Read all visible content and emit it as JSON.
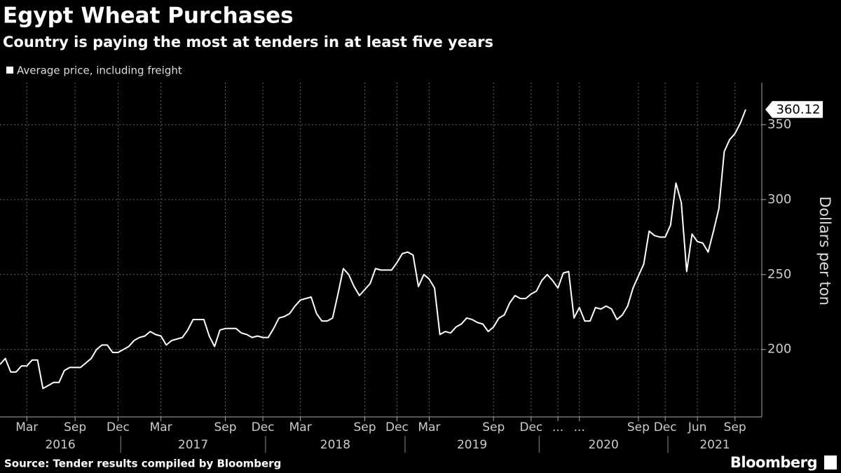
{
  "chart_data": {
    "type": "line",
    "title": "Egypt Wheat Purchases",
    "subtitle": "Country is paying the most at tenders in at least five years",
    "y_axis_label": "Dollars per ton",
    "source": "Source: Tender results compiled by Bloomberg",
    "brand": "Bloomberg",
    "categories": [
      null,
      null,
      null,
      null,
      null,
      "Mar",
      null,
      null,
      null,
      null,
      null,
      null,
      null,
      null,
      "Sep",
      null,
      null,
      null,
      null,
      null,
      null,
      null,
      "Dec",
      null,
      null,
      null,
      null,
      null,
      null,
      null,
      "Mar",
      null,
      null,
      null,
      null,
      null,
      null,
      null,
      null,
      null,
      null,
      null,
      "Sep",
      null,
      null,
      null,
      null,
      null,
      null,
      "Dec",
      null,
      null,
      null,
      null,
      null,
      null,
      "Mar",
      null,
      null,
      null,
      null,
      null,
      null,
      null,
      null,
      null,
      null,
      null,
      "Sep",
      null,
      null,
      null,
      null,
      null,
      "Dec",
      null,
      null,
      null,
      null,
      null,
      "Mar",
      null,
      null,
      null,
      null,
      null,
      null,
      null,
      null,
      null,
      null,
      null,
      "Sep",
      null,
      null,
      null,
      null,
      null,
      null,
      "Dec",
      null,
      null,
      null,
      null,
      "...",
      null,
      null,
      null,
      "...",
      null,
      null,
      null,
      null,
      null,
      null,
      null,
      null,
      null,
      null,
      "Sep",
      null,
      null,
      null,
      null,
      "Dec",
      null,
      null,
      null,
      null,
      null,
      "Jun",
      null,
      null,
      null,
      null,
      null,
      null,
      "Sep",
      null,
      null
    ],
    "year_groups": [
      {
        "label": "2016",
        "count": 23
      },
      {
        "label": "2017",
        "count": 27
      },
      {
        "label": "2018",
        "count": 26
      },
      {
        "label": "2019",
        "count": 25
      },
      {
        "label": "2020",
        "count": 24
      },
      {
        "label": "2021",
        "count": 15
      }
    ],
    "series": [
      {
        "name": "Average price, including freight",
        "color": "#ffffff",
        "values": [
          190,
          194,
          185,
          185,
          189,
          189,
          193,
          193,
          174,
          176,
          178,
          178,
          186,
          188,
          188,
          188,
          191,
          194,
          200,
          203,
          203,
          198,
          198,
          200,
          202,
          206,
          208,
          209,
          212,
          210,
          209,
          203,
          206,
          207,
          208,
          213,
          220,
          220,
          220,
          209,
          202,
          213,
          214,
          214,
          214,
          211,
          210,
          208,
          209,
          208,
          208,
          214,
          221,
          222,
          224,
          229,
          233,
          234,
          235,
          224,
          219,
          219,
          221,
          237,
          254,
          250,
          242,
          236,
          240,
          244,
          254,
          253,
          253,
          253,
          258,
          264,
          265,
          263,
          242,
          250,
          247,
          241,
          210,
          212,
          211,
          215,
          217,
          221,
          220,
          218,
          217,
          212,
          215,
          221,
          223,
          231,
          236,
          234,
          234,
          237,
          239,
          246,
          250,
          246,
          241,
          251,
          252,
          221,
          228,
          219,
          219,
          228,
          227,
          229,
          227,
          220,
          223,
          229,
          241,
          249,
          257,
          279,
          276,
          275,
          275,
          283,
          311,
          298,
          252,
          277,
          272,
          271,
          265,
          279,
          294,
          332,
          340,
          344,
          351,
          360.12
        ]
      }
    ],
    "ylim": [
      155,
      378
    ],
    "yticks": [
      200,
      250,
      300,
      350
    ],
    "grid": true
  }
}
